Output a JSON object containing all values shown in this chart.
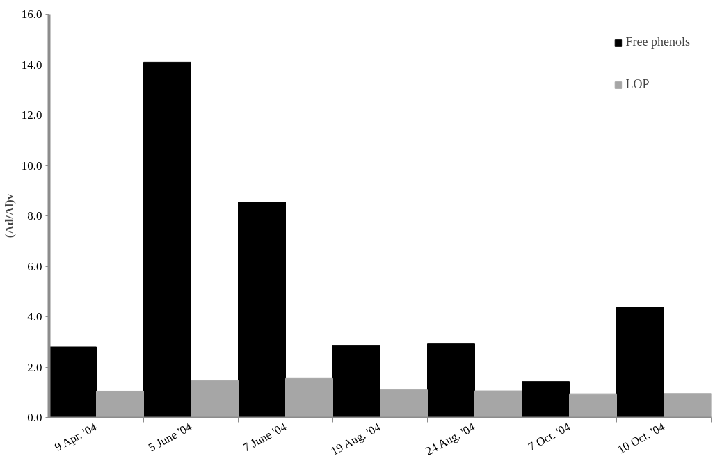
{
  "chart_data": {
    "type": "bar",
    "ylabel": "(Ad/Al)v",
    "categories": [
      "9 Apr. '04",
      "5 June '04",
      "7 June '04",
      "19 Aug. '04",
      "24 Aug. '04",
      "7 Oct. '04",
      "10 Oct. '04"
    ],
    "series": [
      {
        "name": "Free phenols",
        "color": "#000000",
        "values": [
          2.8,
          14.1,
          8.55,
          2.85,
          2.92,
          1.43,
          4.37
        ]
      },
      {
        "name": "LOP",
        "color": "#a6a6a6",
        "values": [
          1.05,
          1.47,
          1.55,
          1.1,
          1.06,
          0.92,
          0.93
        ]
      }
    ],
    "ylim": [
      0,
      16
    ],
    "yticks": [
      {
        "value": 0,
        "label": "0.0"
      },
      {
        "value": 2,
        "label": "2.0"
      },
      {
        "value": 4,
        "label": "4.0"
      },
      {
        "value": 6,
        "label": "6.0"
      },
      {
        "value": 8,
        "label": "8.0"
      },
      {
        "value": 10,
        "label": "10.0"
      },
      {
        "value": 12,
        "label": "12.0"
      },
      {
        "value": 14,
        "label": "14.0"
      },
      {
        "value": 16,
        "label": "16.0"
      }
    ],
    "grid": false,
    "legend": "top right"
  }
}
